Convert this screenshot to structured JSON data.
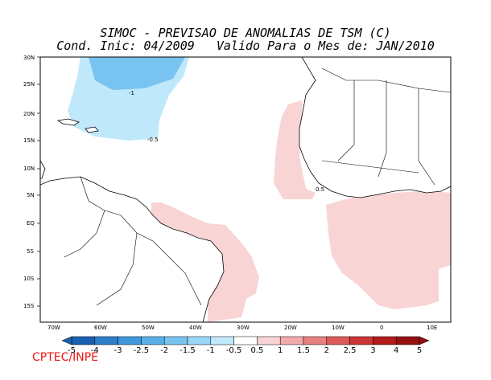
{
  "title_line1": "SIMOC - PREVISAO DE ANOMALIAS DE TSM (C)",
  "title_line2": "Cond. Inic: 04/2009   Valido Para o Mes de: JAN/2010",
  "lat_labels": [
    "30N",
    "25N",
    "20N",
    "15N",
    "10N",
    "5N",
    "EQ",
    "5S",
    "10S",
    "15S"
  ],
  "lon_labels": [
    "70W",
    "60W",
    "50W",
    "40W",
    "30W",
    "20W",
    "10W",
    "0",
    "10E"
  ],
  "contour_labels": [
    "-1",
    "-0.5",
    "0.5"
  ],
  "colorbar": {
    "labels": [
      "-5",
      "-4",
      "-3",
      "-2.5",
      "-2",
      "-1.5",
      "-1",
      "-0.5",
      "0.5",
      "1",
      "1.5",
      "2",
      "2.5",
      "3",
      "4",
      "5"
    ],
    "colors": [
      "#1a5fb0",
      "#2d7dc8",
      "#3f98dd",
      "#5aafe8",
      "#79c3f1",
      "#9ad6f7",
      "#bfe8fb",
      "#ffffff",
      "#f9d4d4",
      "#f2aaaa",
      "#e88080",
      "#dc5a5a",
      "#cc3535",
      "#b51a1a",
      "#961010"
    ]
  },
  "credit": "CPTEC/INPE"
}
